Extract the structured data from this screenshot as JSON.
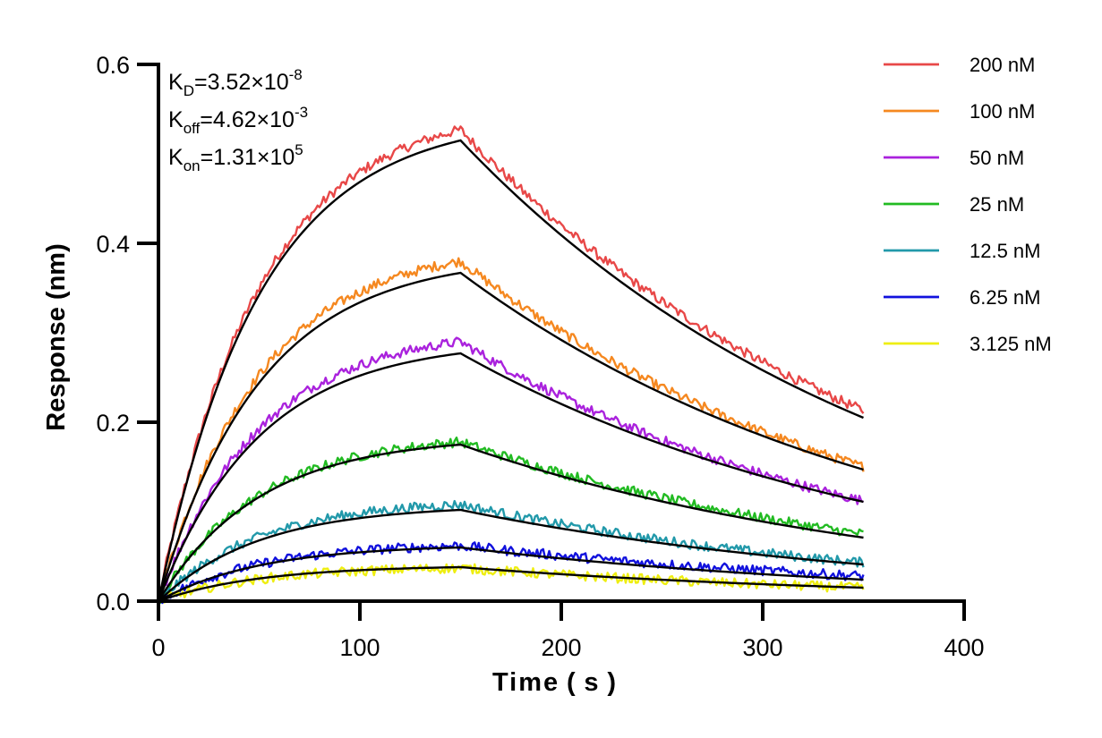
{
  "chart_data": {
    "type": "line",
    "title": "",
    "xlabel": "Time ( s )",
    "ylabel": "Response (nm)",
    "xlim": [
      0,
      400
    ],
    "ylim": [
      0,
      0.6
    ],
    "x_ticks": [
      "0",
      "100",
      "200",
      "300",
      "400"
    ],
    "x_tick_values": [
      0,
      100,
      200,
      300,
      400
    ],
    "y_ticks": [
      "0.0",
      "0.2",
      "0.4",
      "0.6"
    ],
    "y_tick_values": [
      0.0,
      0.2,
      0.4,
      0.6
    ],
    "grid": false,
    "legend_position": "right",
    "association_end_s": 150,
    "end_s": 350,
    "annotations": [
      {
        "main": "K",
        "sub": "D",
        "rest": "=3.52×10",
        "sup": "-8"
      },
      {
        "main": "K",
        "sub": "off",
        "rest": "=4.62×10",
        "sup": "-3"
      },
      {
        "main": "K",
        "sub": "on",
        "rest": "=1.31×10",
        "sup": "5"
      }
    ],
    "kinetics": {
      "KD": 3.52e-08,
      "koff": 0.00462,
      "kon": 131000
    },
    "fit_color": "#000000",
    "series": [
      {
        "name": "200 nM",
        "color": "#e84848",
        "peak": 0.527,
        "fit_peak": 0.515,
        "end": 0.213,
        "fit_end": 0.205
      },
      {
        "name": "100 nM",
        "color": "#f58820",
        "peak": 0.38,
        "fit_peak": 0.367,
        "end": 0.15,
        "fit_end": 0.147
      },
      {
        "name": "50 nM",
        "color": "#aa22dd",
        "peak": 0.29,
        "fit_peak": 0.277,
        "end": 0.112,
        "fit_end": 0.111
      },
      {
        "name": "25 nM",
        "color": "#22bb22",
        "peak": 0.178,
        "fit_peak": 0.175,
        "end": 0.075,
        "fit_end": 0.071
      },
      {
        "name": "12.5 nM",
        "color": "#2299aa",
        "peak": 0.108,
        "fit_peak": 0.102,
        "end": 0.043,
        "fit_end": 0.041
      },
      {
        "name": "6.25 nM",
        "color": "#1111dd",
        "peak": 0.062,
        "fit_peak": 0.06,
        "end": 0.028,
        "fit_end": 0.024
      },
      {
        "name": "3.125 nM",
        "color": "#eeee11",
        "peak": 0.037,
        "fit_peak": 0.038,
        "end": 0.015,
        "fit_end": 0.015
      }
    ]
  }
}
